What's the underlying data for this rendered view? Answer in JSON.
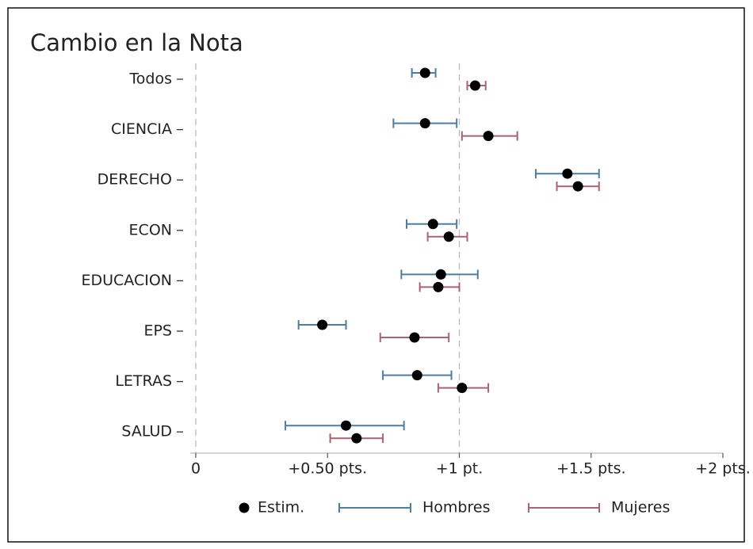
{
  "chart_data": {
    "type": "dot-errorbar",
    "title": "Cambio en la Nota",
    "categories": [
      "Todos",
      "CIENCIA",
      "DERECHO",
      "ECON",
      "EDUCACION",
      "EPS",
      "LETRAS",
      "SALUD"
    ],
    "point_label": "Estim.",
    "series": [
      {
        "name": "Hombres",
        "color": "#4f7d9e",
        "values": [
          0.87,
          0.87,
          1.41,
          0.9,
          0.93,
          0.48,
          0.84,
          0.57
        ],
        "lower": [
          0.82,
          0.75,
          1.29,
          0.8,
          0.78,
          0.39,
          0.71,
          0.34
        ],
        "upper": [
          0.91,
          0.99,
          1.53,
          0.99,
          1.07,
          0.57,
          0.97,
          0.79
        ]
      },
      {
        "name": "Mujeres",
        "color": "#a8646f",
        "values": [
          1.06,
          1.11,
          1.45,
          0.96,
          0.92,
          0.83,
          1.01,
          0.61
        ],
        "lower": [
          1.03,
          1.01,
          1.37,
          0.88,
          0.85,
          0.7,
          0.92,
          0.51
        ],
        "upper": [
          1.1,
          1.22,
          1.53,
          1.03,
          1.0,
          0.96,
          1.11,
          0.71
        ]
      }
    ],
    "xlim": [
      0,
      2
    ],
    "xticks": [
      0,
      {
        "value": 0.5,
        "label": "+0.50 pts."
      },
      {
        "value": 1,
        "label": "+1 pt."
      },
      {
        "value": 1.5,
        "label": "+1.5 pts."
      },
      {
        "value": 2,
        "label": "+2 pts."
      }
    ],
    "reference_lines": [
      0,
      1
    ]
  }
}
